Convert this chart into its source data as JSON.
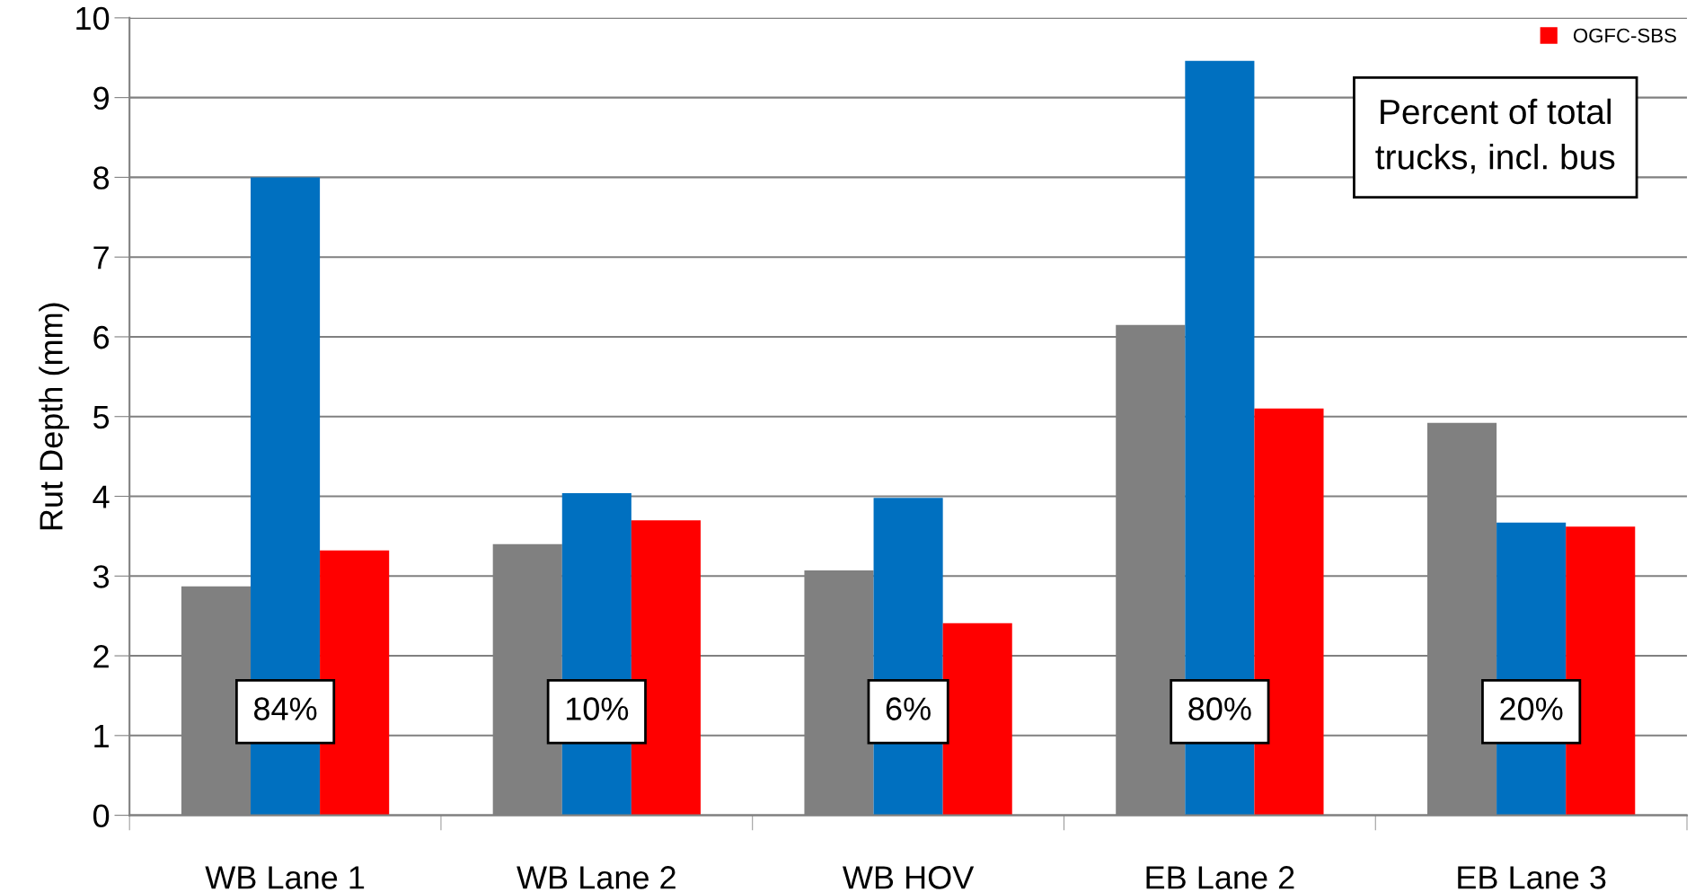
{
  "chart_data": {
    "type": "bar",
    "ylabel": "Rut Depth (mm)",
    "categories": [
      "WB Lane 1",
      "WB Lane 2",
      "WB HOV",
      "EB Lane 2",
      "EB Lane 3"
    ],
    "series": [
      {
        "color": "#808080",
        "values": [
          2.87,
          3.4,
          3.07,
          6.15,
          4.92
        ]
      },
      {
        "color": "#0070c0",
        "values": [
          8.0,
          4.04,
          3.98,
          9.46,
          3.67
        ]
      },
      {
        "name": "OGFC-SBS",
        "color": "#ff0000",
        "values": [
          3.32,
          3.7,
          2.41,
          5.1,
          3.62
        ]
      }
    ],
    "ylim": [
      0,
      10
    ],
    "yticks": [
      0,
      1,
      2,
      3,
      4,
      5,
      6,
      7,
      8,
      9,
      10
    ],
    "grid": "y",
    "legend": "top right",
    "annotations": [
      "Percent of total trucks, incl. bus",
      "84%",
      "10%",
      "6%",
      "80%",
      "20%"
    ]
  }
}
